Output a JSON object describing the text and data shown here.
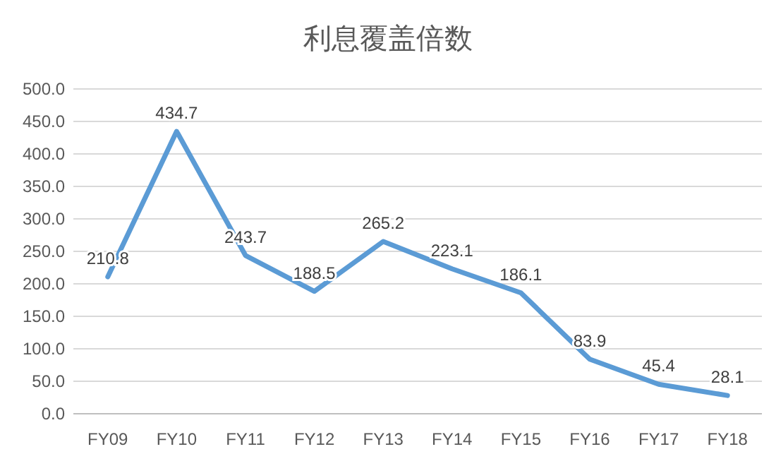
{
  "chart_data": {
    "type": "line",
    "title": "利息覆盖倍数",
    "categories": [
      "FY09",
      "FY10",
      "FY11",
      "FY12",
      "FY13",
      "FY14",
      "FY15",
      "FY16",
      "FY17",
      "FY18"
    ],
    "series": [
      {
        "color": "#5b9bd5",
        "values": [
          210.8,
          434.7,
          243.7,
          188.5,
          265.2,
          223.1,
          186.1,
          83.9,
          45.4,
          28.1
        ]
      }
    ],
    "ylim": [
      0,
      500
    ],
    "yticks": [
      {
        "value": 0,
        "label": "0.0"
      },
      {
        "value": 50,
        "label": "50.0"
      },
      {
        "value": 100,
        "label": "100.0"
      },
      {
        "value": 150,
        "label": "150.0"
      },
      {
        "value": 200,
        "label": "200.0"
      },
      {
        "value": 250,
        "label": "250.0"
      },
      {
        "value": 300,
        "label": "300.0"
      },
      {
        "value": 350,
        "label": "350.0"
      },
      {
        "value": 400,
        "label": "400.0"
      },
      {
        "value": 450,
        "label": "450.0"
      },
      {
        "value": 500,
        "label": "500.0"
      }
    ],
    "grid": "y",
    "data_labels": true,
    "marker": "none",
    "line_style": "solid"
  }
}
